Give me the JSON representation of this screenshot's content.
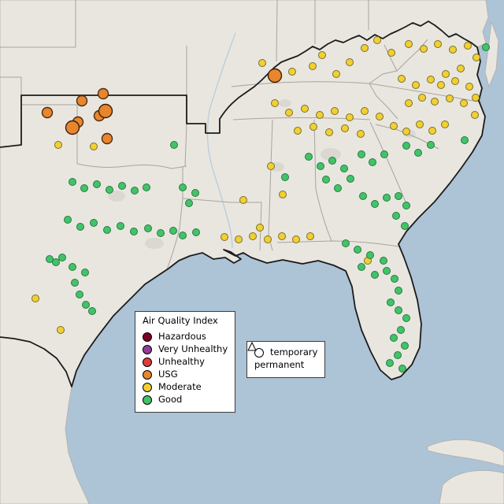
{
  "legend_aqi": {
    "title": "Air Quality Index",
    "items": [
      {
        "label": "Hazardous",
        "color": "#7e0023"
      },
      {
        "label": "Very Unhealthy",
        "color": "#8f3f97"
      },
      {
        "label": "Unhealthy",
        "color": "#e23b3b"
      },
      {
        "label": "USG",
        "color": "#e8862d"
      },
      {
        "label": "Moderate",
        "color": "#f2cf32"
      },
      {
        "label": "Good",
        "color": "#43c368"
      }
    ]
  },
  "legend_symbols": {
    "items": [
      {
        "label": "temporary",
        "symbol": "circle"
      },
      {
        "label": "permanent",
        "symbol": "triangle"
      }
    ]
  },
  "map_colors": {
    "water": "#adc3d6",
    "land": "#e9e6e0",
    "state_border": "#a9a49c",
    "region_outline": "#1b1b1b",
    "river": "#b9cfdf",
    "urban": "#dbd8d1"
  },
  "stations": {
    "categories": {
      "usg_large": {
        "color": "#e8862d",
        "radius": 8.5,
        "stroke": "#3a2009"
      },
      "usg": {
        "color": "#e8862d",
        "radius": 6.5,
        "stroke": "#4a2c12"
      },
      "moderate": {
        "color": "#f2cf32",
        "radius": 4.5,
        "stroke": "#77702a"
      },
      "good": {
        "color": "#43c368",
        "radius": 4.5,
        "stroke": "#267a42"
      }
    },
    "points": {
      "usg_large": [
        [
          349,
          96
        ],
        [
          92,
          162
        ],
        [
          134,
          141
        ]
      ],
      "usg": [
        [
          60,
          143
        ],
        [
          104,
          128
        ],
        [
          131,
          119
        ],
        [
          126,
          147
        ],
        [
          99,
          155
        ],
        [
          136,
          176
        ]
      ],
      "moderate": [
        [
          333,
          80
        ],
        [
          371,
          91
        ],
        [
          397,
          84
        ],
        [
          409,
          70
        ],
        [
          427,
          94
        ],
        [
          444,
          79
        ],
        [
          463,
          61
        ],
        [
          479,
          51
        ],
        [
          497,
          67
        ],
        [
          519,
          56
        ],
        [
          538,
          62
        ],
        [
          556,
          56
        ],
        [
          575,
          63
        ],
        [
          594,
          58
        ],
        [
          605,
          73
        ],
        [
          585,
          87
        ],
        [
          566,
          94
        ],
        [
          547,
          101
        ],
        [
          528,
          108
        ],
        [
          510,
          100
        ],
        [
          560,
          108
        ],
        [
          578,
          103
        ],
        [
          596,
          110
        ],
        [
          604,
          124
        ],
        [
          589,
          131
        ],
        [
          571,
          125
        ],
        [
          552,
          129
        ],
        [
          536,
          124
        ],
        [
          519,
          131
        ],
        [
          603,
          146
        ],
        [
          349,
          131
        ],
        [
          367,
          143
        ],
        [
          387,
          138
        ],
        [
          406,
          146
        ],
        [
          425,
          141
        ],
        [
          444,
          149
        ],
        [
          463,
          141
        ],
        [
          482,
          148
        ],
        [
          378,
          166
        ],
        [
          398,
          161
        ],
        [
          418,
          168
        ],
        [
          438,
          163
        ],
        [
          458,
          170
        ],
        [
          500,
          160
        ],
        [
          516,
          167
        ],
        [
          533,
          158
        ],
        [
          549,
          166
        ],
        [
          565,
          158
        ],
        [
          344,
          211
        ],
        [
          359,
          247
        ],
        [
          309,
          254
        ],
        [
          330,
          289
        ],
        [
          285,
          301
        ],
        [
          303,
          304
        ],
        [
          321,
          300
        ],
        [
          340,
          304
        ],
        [
          358,
          300
        ],
        [
          376,
          304
        ],
        [
          394,
          300
        ],
        [
          74,
          184
        ],
        [
          119,
          186
        ],
        [
          45,
          379
        ],
        [
          77,
          419
        ],
        [
          467,
          331
        ]
      ],
      "good": [
        [
          221,
          184
        ],
        [
          92,
          231
        ],
        [
          107,
          239
        ],
        [
          123,
          234
        ],
        [
          139,
          241
        ],
        [
          155,
          236
        ],
        [
          171,
          242
        ],
        [
          186,
          238
        ],
        [
          232,
          238
        ],
        [
          248,
          245
        ],
        [
          240,
          258
        ],
        [
          86,
          279
        ],
        [
          102,
          288
        ],
        [
          119,
          283
        ],
        [
          136,
          292
        ],
        [
          153,
          287
        ],
        [
          170,
          294
        ],
        [
          188,
          290
        ],
        [
          204,
          296
        ],
        [
          220,
          293
        ],
        [
          63,
          329
        ],
        [
          71,
          333
        ],
        [
          79,
          327
        ],
        [
          92,
          339
        ],
        [
          108,
          346
        ],
        [
          95,
          359
        ],
        [
          101,
          374
        ],
        [
          109,
          387
        ],
        [
          117,
          395
        ],
        [
          232,
          299
        ],
        [
          249,
          295
        ],
        [
          362,
          225
        ],
        [
          392,
          199
        ],
        [
          407,
          211
        ],
        [
          422,
          204
        ],
        [
          437,
          214
        ],
        [
          414,
          228
        ],
        [
          429,
          239
        ],
        [
          445,
          227
        ],
        [
          459,
          196
        ],
        [
          473,
          206
        ],
        [
          488,
          196
        ],
        [
          461,
          249
        ],
        [
          476,
          259
        ],
        [
          491,
          251
        ],
        [
          506,
          249
        ],
        [
          516,
          261
        ],
        [
          503,
          274
        ],
        [
          514,
          287
        ],
        [
          516,
          185
        ],
        [
          531,
          194
        ],
        [
          547,
          184
        ],
        [
          590,
          178
        ],
        [
          439,
          309
        ],
        [
          454,
          317
        ],
        [
          470,
          324
        ],
        [
          487,
          331
        ],
        [
          459,
          339
        ],
        [
          476,
          349
        ],
        [
          491,
          344
        ],
        [
          501,
          354
        ],
        [
          506,
          369
        ],
        [
          496,
          384
        ],
        [
          506,
          394
        ],
        [
          516,
          404
        ],
        [
          509,
          419
        ],
        [
          500,
          429
        ],
        [
          514,
          439
        ],
        [
          505,
          451
        ],
        [
          495,
          461
        ],
        [
          511,
          468
        ],
        [
          617,
          60
        ]
      ]
    }
  }
}
